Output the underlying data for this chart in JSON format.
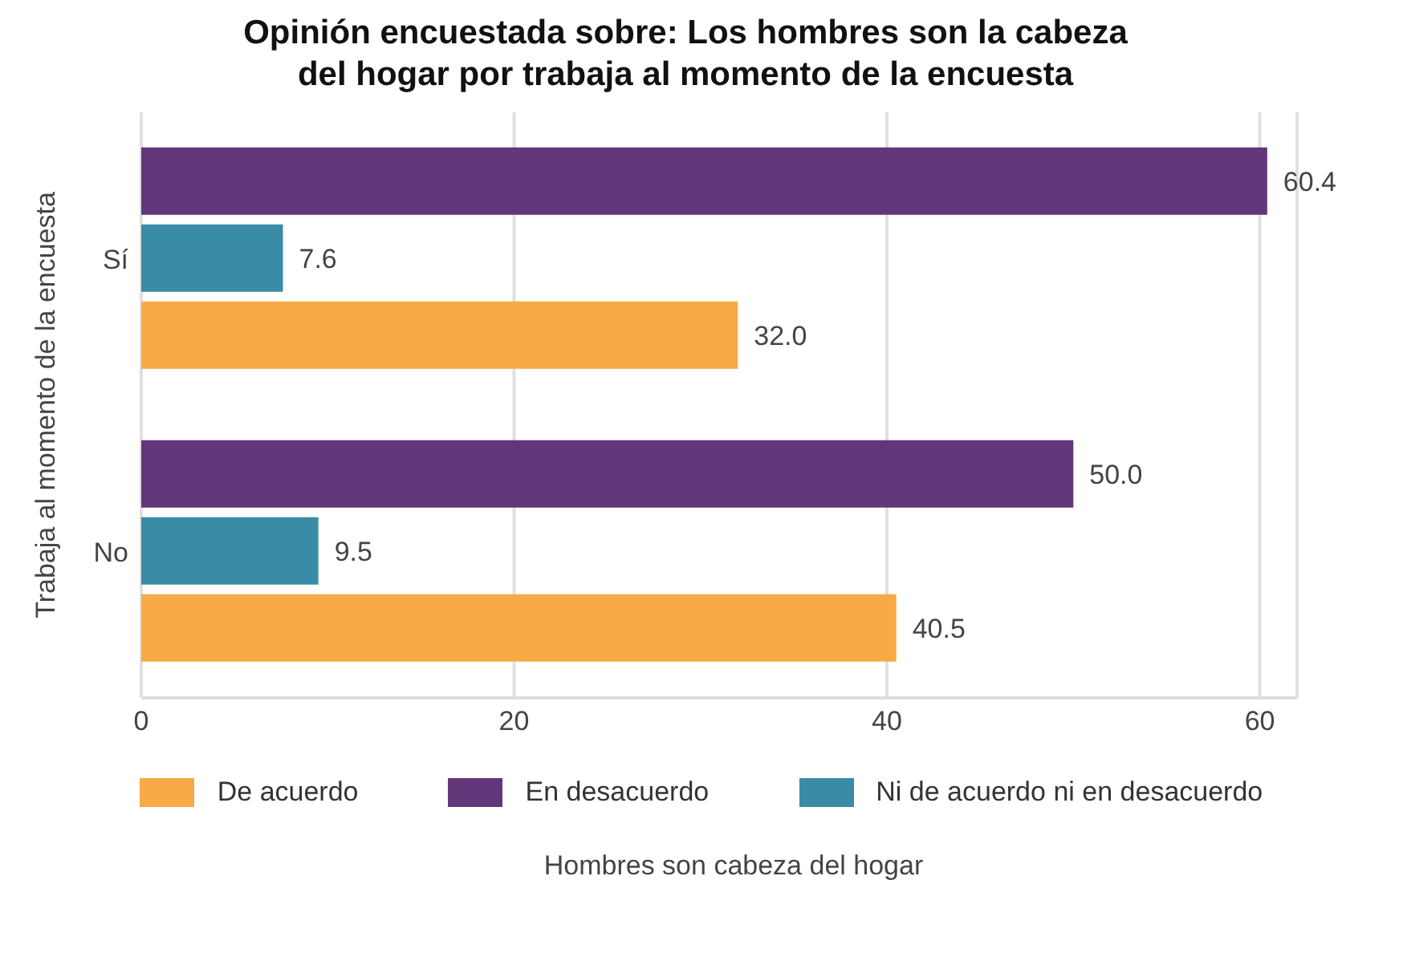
{
  "chart_data": {
    "type": "bar",
    "orientation": "horizontal",
    "title": "Opinión encuestada sobre: Los hombres son la cabeza\ndel hogar por trabaja al momento de la encuesta",
    "xlabel": "Hombres son cabeza del hogar",
    "ylabel": "Trabaja al momento de la encuesta",
    "categories": [
      "Sí",
      "No"
    ],
    "series": [
      {
        "name": "De acuerdo",
        "color": "#f9a945",
        "values": [
          32.0,
          40.5
        ],
        "value_labels": [
          "32.0",
          "40.5"
        ]
      },
      {
        "name": "En desacuerdo",
        "color": "#62377a",
        "values": [
          60.4,
          50.0
        ],
        "value_labels": [
          "60.4",
          "50.0"
        ]
      },
      {
        "name": "Ni de acuerdo ni en desacuerdo",
        "color": "#3a8ba6",
        "values": [
          7.6,
          9.5
        ],
        "value_labels": [
          "7.6",
          "9.5"
        ]
      }
    ],
    "xlim": [
      0,
      62
    ],
    "xticks": [
      0,
      20,
      40,
      60
    ],
    "grid": "x",
    "legend": "bottom"
  }
}
